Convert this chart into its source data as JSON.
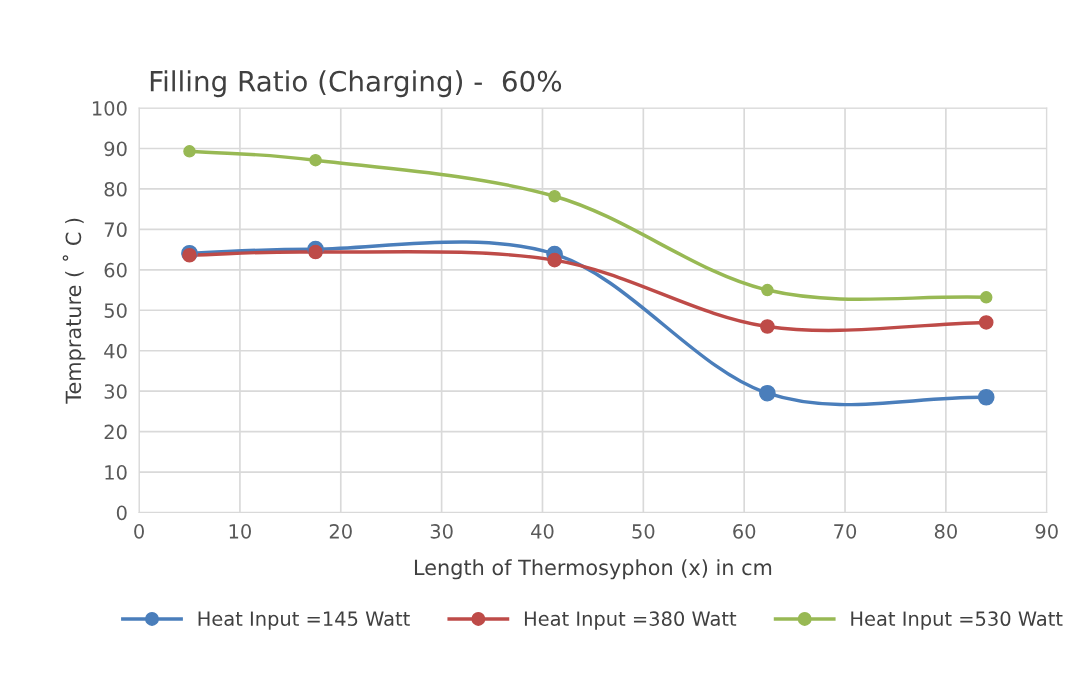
{
  "chart_data": {
    "type": "line",
    "title": "Filling Ratio (Charging) -  60%",
    "xlabel": "Length of Thermosyphon (x) in cm",
    "ylabel": "Temprature ( ˚ C )",
    "x": [
      5,
      17.5,
      41.2,
      62.3,
      84
    ],
    "series": [
      {
        "name": "Heat Input =145 Watt",
        "color": "#4a7ebb",
        "values": [
          64.1,
          65.1,
          63.9,
          29.5,
          28.5
        ]
      },
      {
        "name": "Heat Input =380 Watt",
        "color": "#be4b48",
        "values": [
          63.6,
          64.4,
          62.4,
          46,
          47
        ]
      },
      {
        "name": "Heat Input =530 Watt",
        "color": "#98b954",
        "values": [
          89.3,
          87.1,
          78.2,
          55,
          53.2
        ]
      }
    ],
    "xlim": [
      0,
      90
    ],
    "xticks": [
      0,
      10,
      20,
      30,
      40,
      50,
      60,
      70,
      80,
      90
    ],
    "ylim": [
      0,
      100
    ],
    "yticks": [
      0,
      10,
      20,
      30,
      40,
      50,
      60,
      70,
      80,
      90,
      100
    ],
    "grid": true,
    "legend": "bottom",
    "marker": "circle",
    "line_style": "solid"
  }
}
